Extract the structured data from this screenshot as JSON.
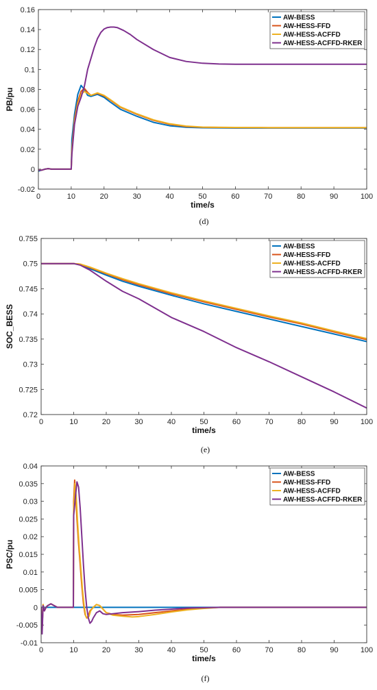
{
  "chart_data": [
    {
      "type": "line",
      "caption": "(d)",
      "xlabel": "time/s",
      "ylabel": "PB/pu",
      "xlim": [
        0,
        100
      ],
      "ylim": [
        -0.02,
        0.16
      ],
      "xticks": [
        0,
        10,
        20,
        30,
        40,
        50,
        60,
        70,
        80,
        90,
        100
      ],
      "yticks": [
        -0.02,
        0,
        0.02,
        0.04,
        0.06,
        0.08,
        0.1,
        0.12,
        0.14,
        0.16
      ],
      "ytick_labels": [
        "-0.02",
        "0",
        "0.02",
        "0.04",
        "0.06",
        "0.08",
        "0.1",
        "0.12",
        "0.14",
        "0.16"
      ],
      "legend_position": "top-right",
      "series": [
        {
          "name": "AW-BESS",
          "color": "#0072BD",
          "x": [
            0,
            1,
            2,
            3,
            4,
            5,
            7,
            9,
            10,
            10.2,
            11,
            12,
            13,
            14,
            15,
            16,
            18,
            20,
            22,
            25,
            30,
            35,
            40,
            45,
            50,
            60,
            70,
            80,
            90,
            100
          ],
          "y": [
            -0.002,
            -0.001,
            0.0,
            0.0005,
            0.0,
            0.0,
            0.0,
            0.0,
            0.0,
            0.03,
            0.055,
            0.075,
            0.084,
            0.08,
            0.074,
            0.073,
            0.075,
            0.072,
            0.067,
            0.06,
            0.053,
            0.047,
            0.0435,
            0.042,
            0.0415,
            0.0412,
            0.0412,
            0.0412,
            0.0412,
            0.0412
          ]
        },
        {
          "name": "AW-HESS-FFD",
          "color": "#D95319",
          "x": [
            0,
            1,
            2,
            3,
            4,
            5,
            7,
            9,
            10,
            10.2,
            11,
            12,
            13,
            14,
            15,
            16,
            18,
            20,
            22,
            25,
            30,
            35,
            40,
            45,
            50,
            60,
            70,
            80,
            90,
            100
          ],
          "y": [
            -0.001,
            -0.001,
            0.0,
            0.0005,
            0.0,
            0.0,
            0.0,
            0.0,
            0.0,
            0.02,
            0.05,
            0.068,
            0.078,
            0.081,
            0.077,
            0.074,
            0.076,
            0.0735,
            0.069,
            0.062,
            0.055,
            0.049,
            0.045,
            0.0428,
            0.042,
            0.0417,
            0.0416,
            0.0416,
            0.0416,
            0.0416
          ]
        },
        {
          "name": "AW-HESS-ACFFD",
          "color": "#EDB120",
          "x": [
            0,
            1,
            2,
            3,
            4,
            5,
            7,
            9,
            10,
            10.2,
            11,
            12,
            13,
            14,
            15,
            16,
            18,
            20,
            22,
            25,
            30,
            35,
            40,
            45,
            50,
            60,
            70,
            80,
            90,
            100
          ],
          "y": [
            -0.001,
            -0.001,
            0.0,
            0.0005,
            0.0,
            0.0,
            0.0,
            0.0,
            0.0,
            0.018,
            0.048,
            0.066,
            0.075,
            0.078,
            0.076,
            0.074,
            0.0765,
            0.074,
            0.0695,
            0.0625,
            0.0555,
            0.0495,
            0.0455,
            0.0432,
            0.0422,
            0.0418,
            0.0417,
            0.0417,
            0.0417,
            0.0417
          ]
        },
        {
          "name": "AW-HESS-ACFFD-RKER",
          "color": "#7E2F8E",
          "x": [
            0,
            1,
            2,
            3,
            4,
            5,
            7,
            9,
            10,
            10.2,
            11,
            12,
            13,
            14,
            15,
            16,
            17,
            18,
            19,
            20,
            21,
            22,
            23,
            24,
            26,
            28,
            30,
            35,
            40,
            45,
            50,
            55,
            60,
            70,
            80,
            90,
            100
          ],
          "y": [
            -0.001,
            -0.001,
            0.0,
            0.0005,
            0.0,
            0.0,
            0.0,
            0.0,
            0.0,
            0.015,
            0.045,
            0.063,
            0.072,
            0.083,
            0.1,
            0.111,
            0.122,
            0.131,
            0.137,
            0.1405,
            0.142,
            0.1425,
            0.1425,
            0.142,
            0.139,
            0.135,
            0.13,
            0.12,
            0.112,
            0.108,
            0.1062,
            0.1055,
            0.1052,
            0.1052,
            0.1052,
            0.1052,
            0.1052
          ]
        }
      ]
    },
    {
      "type": "line",
      "caption": "(e)",
      "xlabel": "time/s",
      "ylabel": "SOC_BESS",
      "xlim": [
        0,
        100
      ],
      "ylim": [
        0.72,
        0.755
      ],
      "xticks": [
        0,
        10,
        20,
        30,
        40,
        50,
        60,
        70,
        80,
        90,
        100
      ],
      "yticks": [
        0.72,
        0.725,
        0.73,
        0.735,
        0.74,
        0.745,
        0.75,
        0.755
      ],
      "ytick_labels": [
        "0.72",
        "0.725",
        "0.73",
        "0.735",
        "0.74",
        "0.745",
        "0.75",
        "0.755"
      ],
      "legend_position": "top-right",
      "series": [
        {
          "name": "AW-BESS",
          "color": "#0072BD",
          "x": [
            0,
            10,
            12,
            15,
            20,
            25,
            30,
            40,
            50,
            60,
            70,
            80,
            90,
            100
          ],
          "y": [
            0.75,
            0.75,
            0.7498,
            0.749,
            0.7477,
            0.7465,
            0.7455,
            0.7437,
            0.742,
            0.7405,
            0.739,
            0.7375,
            0.736,
            0.7345
          ]
        },
        {
          "name": "AW-HESS-FFD",
          "color": "#D95319",
          "x": [
            0,
            10,
            12,
            15,
            20,
            25,
            30,
            40,
            50,
            60,
            70,
            80,
            90,
            100
          ],
          "y": [
            0.75,
            0.75,
            0.7499,
            0.7492,
            0.748,
            0.7468,
            0.7458,
            0.744,
            0.7424,
            0.7409,
            0.7394,
            0.738,
            0.7364,
            0.7349
          ]
        },
        {
          "name": "AW-HESS-ACFFD",
          "color": "#EDB120",
          "x": [
            0,
            10,
            12,
            15,
            20,
            25,
            30,
            40,
            50,
            60,
            70,
            80,
            90,
            100
          ],
          "y": [
            0.75,
            0.75,
            0.7499,
            0.7493,
            0.7481,
            0.747,
            0.746,
            0.7442,
            0.7426,
            0.7411,
            0.7396,
            0.7382,
            0.7366,
            0.7351
          ]
        },
        {
          "name": "AW-HESS-ACFFD-RKER",
          "color": "#7E2F8E",
          "x": [
            0,
            10,
            12,
            15,
            20,
            25,
            30,
            40,
            50,
            60,
            70,
            80,
            90,
            100
          ],
          "y": [
            0.75,
            0.75,
            0.7497,
            0.7487,
            0.7465,
            0.7445,
            0.743,
            0.7393,
            0.7365,
            0.7333,
            0.7305,
            0.7275,
            0.7245,
            0.7213
          ]
        }
      ]
    },
    {
      "type": "line",
      "caption": "(f)",
      "xlabel": "time/s",
      "ylabel": "PSC/pu",
      "xlim": [
        0,
        100
      ],
      "ylim": [
        -0.01,
        0.04
      ],
      "xticks": [
        0,
        10,
        20,
        30,
        40,
        50,
        60,
        70,
        80,
        90,
        100
      ],
      "yticks": [
        -0.01,
        -0.005,
        0,
        0.005,
        0.01,
        0.015,
        0.02,
        0.025,
        0.03,
        0.035,
        0.04
      ],
      "ytick_labels": [
        "-0.01",
        "-0.005",
        "0",
        "0.005",
        "0.01",
        "0.015",
        "0.02",
        "0.025",
        "0.03",
        "0.035",
        "0.04"
      ],
      "legend_position": "top-right",
      "series": [
        {
          "name": "AW-BESS",
          "color": "#0072BD",
          "x": [
            0,
            100
          ],
          "y": [
            0,
            0
          ]
        },
        {
          "name": "AW-HESS-FFD",
          "color": "#D95319",
          "x": [
            0,
            0.3,
            0.6,
            1,
            1.5,
            2,
            3,
            4,
            5,
            7,
            9.9,
            10,
            10.3,
            10.6,
            11,
            11.5,
            12,
            12.5,
            13,
            13.5,
            14,
            14.5,
            15,
            16,
            17,
            18,
            19,
            20,
            22,
            25,
            30,
            35,
            40,
            45,
            50,
            55,
            60,
            70,
            80,
            90,
            100
          ],
          "y": [
            0,
            -0.006,
            0.0008,
            -0.001,
            0.0,
            0.0005,
            0.001,
            0.0005,
            0.0,
            0.0,
            0.0,
            0.03,
            0.036,
            0.032,
            0.025,
            0.018,
            0.012,
            0.006,
            0.001,
            -0.002,
            -0.003,
            -0.0025,
            -0.001,
            0.0,
            0.0008,
            0.0005,
            -0.0005,
            -0.0015,
            -0.002,
            -0.0022,
            -0.002,
            -0.0015,
            -0.001,
            -0.0005,
            -0.0002,
            0.0,
            0.0,
            0.0,
            0.0,
            0.0,
            0.0
          ]
        },
        {
          "name": "AW-HESS-ACFFD",
          "color": "#EDB120",
          "x": [
            0,
            0.3,
            0.6,
            1,
            1.5,
            2,
            3,
            4,
            5,
            7,
            9.9,
            10,
            10.4,
            10.8,
            11.2,
            11.7,
            12.2,
            12.7,
            13.2,
            13.7,
            14.2,
            14.7,
            15.2,
            16,
            17,
            18,
            19,
            20,
            22,
            25,
            28,
            30,
            35,
            40,
            45,
            50,
            55,
            60,
            70,
            80,
            90,
            100
          ],
          "y": [
            0,
            -0.006,
            0.0008,
            -0.001,
            0.0,
            0.0005,
            0.001,
            0.0005,
            0.0,
            0.0,
            0.0,
            0.028,
            0.035,
            0.031,
            0.024,
            0.017,
            0.011,
            0.005,
            0.0005,
            -0.0025,
            -0.003,
            -0.0025,
            -0.001,
            0.0,
            0.0008,
            0.0005,
            -0.0005,
            -0.0015,
            -0.0022,
            -0.0025,
            -0.0027,
            -0.0026,
            -0.002,
            -0.0013,
            -0.0007,
            -0.0003,
            0.0,
            0.0,
            0.0,
            0.0,
            0.0,
            0.0
          ]
        },
        {
          "name": "AW-HESS-ACFFD-RKER",
          "color": "#7E2F8E",
          "x": [
            0,
            0.3,
            0.6,
            1,
            1.5,
            2,
            3,
            4,
            5,
            7,
            9.9,
            10,
            10.5,
            11,
            11.5,
            12,
            12.5,
            13,
            13.5,
            14,
            14.5,
            15,
            15.5,
            16,
            17,
            18,
            19,
            20,
            22,
            25,
            30,
            35,
            40,
            45,
            50,
            55,
            60,
            70,
            80,
            90,
            100
          ],
          "y": [
            0,
            -0.0075,
            0.0005,
            -0.001,
            0.0,
            0.0005,
            0.001,
            0.0005,
            0.0,
            0.0,
            0.0,
            0.026,
            0.031,
            0.0355,
            0.034,
            0.028,
            0.02,
            0.012,
            0.005,
            0.0,
            -0.003,
            -0.0045,
            -0.004,
            -0.003,
            -0.0015,
            -0.001,
            -0.0018,
            -0.002,
            -0.0018,
            -0.0015,
            -0.0012,
            -0.0008,
            -0.0005,
            -0.0002,
            -0.0001,
            0.0,
            0.0,
            0.0,
            0.0,
            0.0,
            0.0
          ]
        }
      ]
    }
  ]
}
